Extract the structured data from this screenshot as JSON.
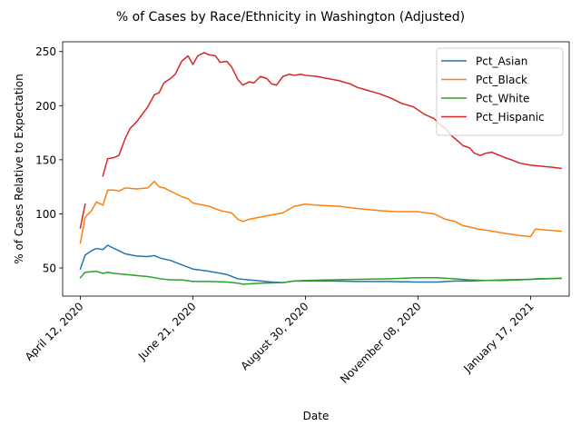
{
  "chart_data": {
    "type": "line",
    "title": "% of Cases by Race/Ethnicity in Washington (Adjusted)",
    "xlabel": "Date",
    "ylabel": "% of Cases Relative to Expectation",
    "x_ticks": [
      "2020-04-12",
      "2020-06-21",
      "2020-08-30",
      "2020-11-08",
      "2021-01-17"
    ],
    "x_tick_labels": [
      "April 12, 2020",
      "June 21, 2020",
      "August 30, 2020",
      "November 08, 2020",
      "January 17, 2021"
    ],
    "y_ticks": [
      50,
      100,
      150,
      200,
      250
    ],
    "ylim": [
      24,
      259
    ],
    "xlim": [
      "2020-04-01",
      "2021-02-10"
    ],
    "grid": false,
    "legend_position": "top-right",
    "series": [
      {
        "name": "Pct_Asian",
        "color": "#1f77b4",
        "points": [
          [
            "2020-04-12",
            49
          ],
          [
            "2020-04-15",
            62
          ],
          [
            "2020-04-19",
            66
          ],
          [
            "2020-04-22",
            68
          ],
          [
            "2020-04-26",
            67
          ],
          [
            "2020-04-29",
            71
          ],
          [
            "2020-05-03",
            68
          ],
          [
            "2020-05-06",
            66
          ],
          [
            "2020-05-10",
            63
          ],
          [
            "2020-05-17",
            61
          ],
          [
            "2020-05-24",
            60.5
          ],
          [
            "2020-05-28",
            61.5
          ],
          [
            "2020-06-01",
            59
          ],
          [
            "2020-06-07",
            57
          ],
          [
            "2020-06-14",
            53
          ],
          [
            "2020-06-21",
            49
          ],
          [
            "2020-07-01",
            47
          ],
          [
            "2020-07-12",
            44
          ],
          [
            "2020-07-19",
            40
          ],
          [
            "2020-07-26",
            39
          ],
          [
            "2020-08-09",
            37
          ],
          [
            "2020-08-16",
            36.5
          ],
          [
            "2020-08-23",
            38
          ],
          [
            "2020-08-30",
            38
          ],
          [
            "2020-09-15",
            38
          ],
          [
            "2020-10-01",
            37.5
          ],
          [
            "2020-10-20",
            37.5
          ],
          [
            "2020-11-08",
            37
          ],
          [
            "2020-11-20",
            37
          ],
          [
            "2020-12-01",
            38
          ],
          [
            "2020-12-10",
            38
          ],
          [
            "2020-12-20",
            38.5
          ],
          [
            "2021-01-01",
            39
          ],
          [
            "2021-01-17",
            39.5
          ],
          [
            "2021-02-05",
            40.5
          ]
        ]
      },
      {
        "name": "Pct_Black",
        "color": "#ff7f0e",
        "points": [
          [
            "2020-04-12",
            73
          ],
          [
            "2020-04-15",
            97
          ],
          [
            "2020-04-19",
            103
          ],
          [
            "2020-04-22",
            111
          ],
          [
            "2020-04-26",
            108
          ],
          [
            "2020-04-29",
            122
          ],
          [
            "2020-05-03",
            122
          ],
          [
            "2020-05-06",
            121
          ],
          [
            "2020-05-10",
            124
          ],
          [
            "2020-05-17",
            123
          ],
          [
            "2020-05-24",
            124
          ],
          [
            "2020-05-28",
            130
          ],
          [
            "2020-05-31",
            125
          ],
          [
            "2020-06-03",
            124
          ],
          [
            "2020-06-07",
            121
          ],
          [
            "2020-06-14",
            116
          ],
          [
            "2020-06-18",
            114
          ],
          [
            "2020-06-21",
            110
          ],
          [
            "2020-07-01",
            107
          ],
          [
            "2020-07-08",
            103
          ],
          [
            "2020-07-15",
            101
          ],
          [
            "2020-07-19",
            95
          ],
          [
            "2020-07-22",
            93
          ],
          [
            "2020-07-26",
            95
          ],
          [
            "2020-08-02",
            97
          ],
          [
            "2020-08-09",
            99
          ],
          [
            "2020-08-16",
            101
          ],
          [
            "2020-08-23",
            107
          ],
          [
            "2020-08-30",
            109
          ],
          [
            "2020-09-06",
            108
          ],
          [
            "2020-09-20",
            107
          ],
          [
            "2020-10-01",
            105
          ],
          [
            "2020-10-15",
            103
          ],
          [
            "2020-10-25",
            102
          ],
          [
            "2020-11-08",
            102
          ],
          [
            "2020-11-18",
            100
          ],
          [
            "2020-11-25",
            95
          ],
          [
            "2020-12-01",
            93
          ],
          [
            "2020-12-06",
            89
          ],
          [
            "2020-12-10",
            88
          ],
          [
            "2020-12-15",
            86
          ],
          [
            "2020-12-20",
            85
          ],
          [
            "2021-01-01",
            82
          ],
          [
            "2021-01-10",
            80
          ],
          [
            "2021-01-17",
            79
          ],
          [
            "2021-01-20",
            86
          ],
          [
            "2021-01-27",
            85
          ],
          [
            "2021-02-05",
            84
          ]
        ]
      },
      {
        "name": "Pct_White",
        "color": "#2ca02c",
        "points": [
          [
            "2020-04-12",
            41
          ],
          [
            "2020-04-15",
            46
          ],
          [
            "2020-04-22",
            47
          ],
          [
            "2020-04-26",
            45
          ],
          [
            "2020-04-29",
            46
          ],
          [
            "2020-05-03",
            45
          ],
          [
            "2020-05-10",
            44
          ],
          [
            "2020-05-17",
            43
          ],
          [
            "2020-05-24",
            42
          ],
          [
            "2020-06-01",
            40
          ],
          [
            "2020-06-07",
            39
          ],
          [
            "2020-06-14",
            39
          ],
          [
            "2020-06-21",
            37.5
          ],
          [
            "2020-07-01",
            37.5
          ],
          [
            "2020-07-12",
            37
          ],
          [
            "2020-07-19",
            36
          ],
          [
            "2020-07-22",
            35
          ],
          [
            "2020-08-02",
            36
          ],
          [
            "2020-08-16",
            36.5
          ],
          [
            "2020-08-23",
            38
          ],
          [
            "2020-08-30",
            38.5
          ],
          [
            "2020-09-15",
            39
          ],
          [
            "2020-10-01",
            39.5
          ],
          [
            "2020-10-20",
            40
          ],
          [
            "2020-11-08",
            41
          ],
          [
            "2020-11-20",
            41
          ],
          [
            "2020-12-01",
            40
          ],
          [
            "2020-12-10",
            39
          ],
          [
            "2020-12-20",
            38.5
          ],
          [
            "2021-01-01",
            38.5
          ],
          [
            "2021-01-17",
            39.5
          ],
          [
            "2021-01-20",
            40
          ],
          [
            "2021-02-05",
            40.5
          ]
        ]
      },
      {
        "name": "Pct_Hispanic",
        "color": "#d62728",
        "segments": [
          [
            [
              "2020-04-12",
              87
            ],
            [
              "2020-04-15",
              109
            ]
          ],
          [
            [
              "2020-04-26",
              135
            ],
            [
              "2020-04-29",
              151
            ],
            [
              "2020-05-03",
              152
            ],
            [
              "2020-05-06",
              154
            ],
            [
              "2020-05-10",
              170
            ],
            [
              "2020-05-13",
              179
            ],
            [
              "2020-05-17",
              185
            ],
            [
              "2020-05-20",
              191
            ],
            [
              "2020-05-24",
              199
            ],
            [
              "2020-05-28",
              210
            ],
            [
              "2020-05-31",
              212
            ],
            [
              "2020-06-03",
              221
            ],
            [
              "2020-06-07",
              225
            ],
            [
              "2020-06-10",
              229
            ],
            [
              "2020-06-14",
              241
            ],
            [
              "2020-06-18",
              246
            ],
            [
              "2020-06-21",
              238
            ],
            [
              "2020-06-24",
              246
            ],
            [
              "2020-06-28",
              249
            ],
            [
              "2020-07-01",
              247
            ],
            [
              "2020-07-05",
              246
            ],
            [
              "2020-07-08",
              240
            ],
            [
              "2020-07-12",
              241
            ],
            [
              "2020-07-15",
              236
            ],
            [
              "2020-07-19",
              224
            ],
            [
              "2020-07-22",
              219
            ],
            [
              "2020-07-26",
              222
            ],
            [
              "2020-07-29",
              221
            ],
            [
              "2020-08-02",
              227
            ],
            [
              "2020-08-06",
              225
            ],
            [
              "2020-08-09",
              220
            ],
            [
              "2020-08-12",
              219
            ],
            [
              "2020-08-16",
              227
            ],
            [
              "2020-08-20",
              229
            ],
            [
              "2020-08-23",
              228
            ],
            [
              "2020-08-27",
              229
            ],
            [
              "2020-08-30",
              228
            ],
            [
              "2020-09-06",
              227
            ],
            [
              "2020-09-13",
              225
            ],
            [
              "2020-09-20",
              223
            ],
            [
              "2020-09-27",
              220
            ],
            [
              "2020-10-01",
              217
            ],
            [
              "2020-10-08",
              214
            ],
            [
              "2020-10-15",
              211
            ],
            [
              "2020-10-22",
              207
            ],
            [
              "2020-10-29",
              202
            ],
            [
              "2020-11-05",
              199
            ],
            [
              "2020-11-08",
              196
            ],
            [
              "2020-11-12",
              192
            ],
            [
              "2020-11-18",
              188
            ],
            [
              "2020-11-22",
              182
            ],
            [
              "2020-11-25",
              179
            ],
            [
              "2020-11-29",
              172
            ],
            [
              "2020-12-03",
              167
            ],
            [
              "2020-12-06",
              163
            ],
            [
              "2020-12-10",
              161
            ],
            [
              "2020-12-13",
              156
            ],
            [
              "2020-12-17",
              154
            ],
            [
              "2020-12-20",
              156
            ],
            [
              "2020-12-24",
              157
            ],
            [
              "2020-12-27",
              155
            ],
            [
              "2021-01-01",
              152
            ],
            [
              "2021-01-05",
              150
            ],
            [
              "2021-01-10",
              147
            ],
            [
              "2021-01-17",
              145
            ],
            [
              "2021-01-24",
              144
            ],
            [
              "2021-01-31",
              143
            ],
            [
              "2021-02-05",
              142
            ]
          ]
        ]
      }
    ]
  }
}
